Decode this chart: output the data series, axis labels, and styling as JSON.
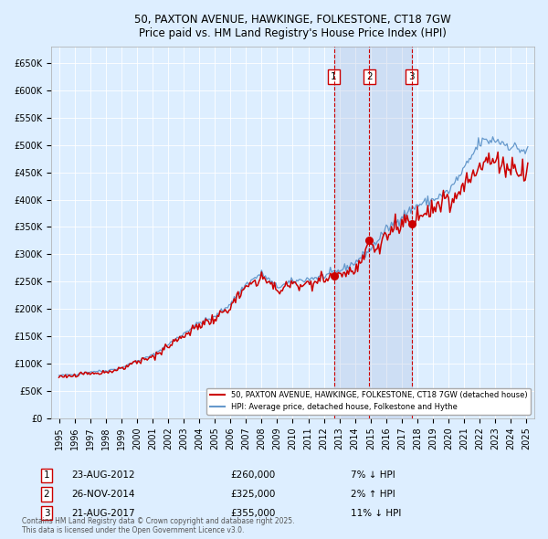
{
  "title": "50, PAXTON AVENUE, HAWKINGE, FOLKESTONE, CT18 7GW",
  "subtitle": "Price paid vs. HM Land Registry's House Price Index (HPI)",
  "legend_line1": "50, PAXTON AVENUE, HAWKINGE, FOLKESTONE, CT18 7GW (detached house)",
  "legend_line2": "HPI: Average price, detached house, Folkestone and Hythe",
  "footnote": "Contains HM Land Registry data © Crown copyright and database right 2025.\nThis data is licensed under the Open Government Licence v3.0.",
  "red_line_color": "#cc0000",
  "blue_line_color": "#6699cc",
  "background_color": "#ddeeff",
  "sale_dates": [
    2012.644,
    2014.903,
    2017.644
  ],
  "sale_prices": [
    260000,
    325000,
    355000
  ],
  "sale_labels": [
    "1",
    "2",
    "3"
  ],
  "sale_labels_info": [
    {
      "label": "1",
      "date": "23-AUG-2012",
      "price": "£260,000",
      "hpi_diff": "7% ↓ HPI"
    },
    {
      "label": "2",
      "date": "26-NOV-2014",
      "price": "£325,000",
      "hpi_diff": "2% ↑ HPI"
    },
    {
      "label": "3",
      "date": "21-AUG-2017",
      "price": "£355,000",
      "hpi_diff": "11% ↓ HPI"
    }
  ],
  "ylim": [
    0,
    680000
  ],
  "yticks": [
    0,
    50000,
    100000,
    150000,
    200000,
    250000,
    300000,
    350000,
    400000,
    450000,
    500000,
    550000,
    600000,
    650000
  ],
  "xlim_start": 1994.5,
  "xlim_end": 2025.5,
  "hpi_key_points": {
    "1995": 78000,
    "1996": 80000,
    "1997": 85000,
    "1998": 87000,
    "1999": 92000,
    "2000": 105000,
    "2001": 115000,
    "2002": 135000,
    "2003": 155000,
    "2004": 175000,
    "2005": 185000,
    "2006": 210000,
    "2007": 245000,
    "2008": 265000,
    "2009": 240000,
    "2010": 250000,
    "2011": 255000,
    "2012": 260000,
    "2013": 270000,
    "2014": 285000,
    "2015": 310000,
    "2016": 345000,
    "2017": 370000,
    "2018": 390000,
    "2019": 400000,
    "2020": 415000,
    "2021": 455000,
    "2022": 505000,
    "2023": 510000,
    "2024": 498000,
    "2025": 488000
  }
}
